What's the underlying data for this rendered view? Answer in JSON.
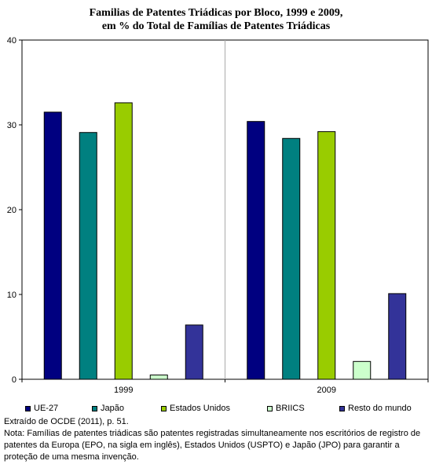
{
  "title_line1": "Familias de Patentes Triádicas por Bloco, 1999 e 2009,",
  "title_line2": "em % do Total de Famílias de Patentes Triádicas",
  "source": "Extraído de OCDE (2011), p. 51.",
  "note": "Nota: Famílias de patentes triádicas são patentes registradas simultaneamente nos escritórios de registro de patentes da Europa (EPO, na sigla em inglês), Estados Unidos (USPTO) e Japão (JPO) para garantir a proteção de uma mesma invenção.",
  "chart_data": {
    "type": "bar",
    "title": "Familias de Patentes Triádicas por Bloco, 1999 e 2009, em % do Total de Famílias de Patentes Triádicas",
    "categories": [
      "1999",
      "2009"
    ],
    "ylim": [
      0,
      40
    ],
    "yticks": [
      "0",
      "10",
      "20",
      "30",
      "40"
    ],
    "grid": false,
    "legend_position": "bottom",
    "series": [
      {
        "name": "UE-27",
        "color": "#000080",
        "values": [
          31.5,
          30.4
        ]
      },
      {
        "name": "Japão",
        "color": "#008080",
        "values": [
          29.1,
          28.4
        ]
      },
      {
        "name": "Estados Unidos",
        "color": "#99CC00",
        "values": [
          32.6,
          29.2
        ]
      },
      {
        "name": "BRIICS",
        "color": "#CCFFCC",
        "values": [
          0.5,
          2.1
        ]
      },
      {
        "name": "Resto do mundo",
        "color": "#333399",
        "values": [
          6.4,
          10.1
        ]
      }
    ]
  }
}
